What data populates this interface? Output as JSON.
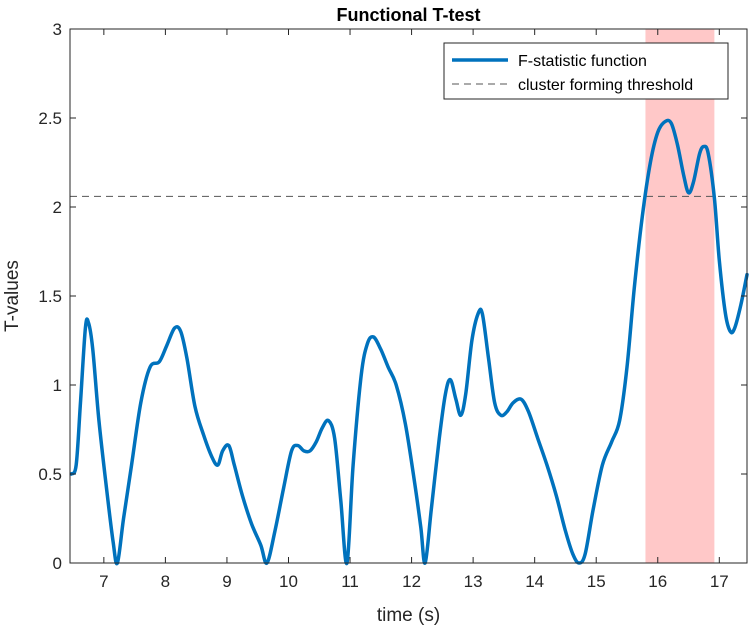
{
  "chart_data": {
    "type": "line",
    "title": "Functional T-test",
    "xlabel": "time (s)",
    "ylabel": "T-values",
    "xlim": [
      6.45,
      17.45
    ],
    "ylim": [
      0,
      3
    ],
    "xticks": [
      7,
      8,
      9,
      10,
      11,
      12,
      13,
      14,
      15,
      16,
      17
    ],
    "yticks": [
      0,
      0.5,
      1,
      1.5,
      2,
      2.5,
      3
    ],
    "ytick_labels": [
      "0",
      "0.5",
      "1",
      "1.5",
      "2",
      "2.5",
      "3"
    ],
    "grid": false,
    "legend_position": "top-right",
    "threshold": {
      "name": "cluster forming threshold",
      "value": 2.06,
      "color": "#555555",
      "style": "dashed"
    },
    "significant_region": {
      "x_start": 15.8,
      "x_end": 16.92,
      "color": "#ffc8c8"
    },
    "series": [
      {
        "name": "F-statistic function",
        "color": "#0072bd",
        "points": [
          [
            6.47,
            0.5
          ],
          [
            6.55,
            0.55
          ],
          [
            6.62,
            0.9
          ],
          [
            6.7,
            1.32
          ],
          [
            6.75,
            1.35
          ],
          [
            6.82,
            1.2
          ],
          [
            6.92,
            0.8
          ],
          [
            7.05,
            0.4
          ],
          [
            7.15,
            0.12
          ],
          [
            7.22,
            0.0
          ],
          [
            7.32,
            0.25
          ],
          [
            7.45,
            0.55
          ],
          [
            7.6,
            0.9
          ],
          [
            7.75,
            1.1
          ],
          [
            7.9,
            1.13
          ],
          [
            8.02,
            1.22
          ],
          [
            8.15,
            1.32
          ],
          [
            8.25,
            1.3
          ],
          [
            8.35,
            1.15
          ],
          [
            8.48,
            0.88
          ],
          [
            8.62,
            0.72
          ],
          [
            8.75,
            0.6
          ],
          [
            8.85,
            0.55
          ],
          [
            8.93,
            0.63
          ],
          [
            9.03,
            0.66
          ],
          [
            9.12,
            0.55
          ],
          [
            9.25,
            0.38
          ],
          [
            9.4,
            0.22
          ],
          [
            9.55,
            0.1
          ],
          [
            9.65,
            0.0
          ],
          [
            9.78,
            0.18
          ],
          [
            9.92,
            0.42
          ],
          [
            10.05,
            0.63
          ],
          [
            10.15,
            0.66
          ],
          [
            10.25,
            0.63
          ],
          [
            10.35,
            0.63
          ],
          [
            10.45,
            0.68
          ],
          [
            10.55,
            0.76
          ],
          [
            10.65,
            0.8
          ],
          [
            10.75,
            0.7
          ],
          [
            10.85,
            0.35
          ],
          [
            10.95,
            0.0
          ],
          [
            11.05,
            0.55
          ],
          [
            11.18,
            1.05
          ],
          [
            11.28,
            1.23
          ],
          [
            11.38,
            1.27
          ],
          [
            11.5,
            1.2
          ],
          [
            11.62,
            1.1
          ],
          [
            11.75,
            1.0
          ],
          [
            11.9,
            0.78
          ],
          [
            12.05,
            0.45
          ],
          [
            12.15,
            0.2
          ],
          [
            12.22,
            0.0
          ],
          [
            12.32,
            0.3
          ],
          [
            12.45,
            0.7
          ],
          [
            12.55,
            0.95
          ],
          [
            12.63,
            1.03
          ],
          [
            12.72,
            0.92
          ],
          [
            12.8,
            0.83
          ],
          [
            12.88,
            0.95
          ],
          [
            12.98,
            1.25
          ],
          [
            13.08,
            1.4
          ],
          [
            13.15,
            1.4
          ],
          [
            13.25,
            1.15
          ],
          [
            13.35,
            0.9
          ],
          [
            13.45,
            0.83
          ],
          [
            13.55,
            0.85
          ],
          [
            13.65,
            0.9
          ],
          [
            13.78,
            0.92
          ],
          [
            13.9,
            0.85
          ],
          [
            14.05,
            0.7
          ],
          [
            14.2,
            0.55
          ],
          [
            14.35,
            0.38
          ],
          [
            14.5,
            0.18
          ],
          [
            14.62,
            0.05
          ],
          [
            14.72,
            0.0
          ],
          [
            14.82,
            0.05
          ],
          [
            14.95,
            0.3
          ],
          [
            15.1,
            0.55
          ],
          [
            15.25,
            0.68
          ],
          [
            15.38,
            0.8
          ],
          [
            15.5,
            1.1
          ],
          [
            15.62,
            1.55
          ],
          [
            15.75,
            1.95
          ],
          [
            15.88,
            2.25
          ],
          [
            16.0,
            2.42
          ],
          [
            16.12,
            2.48
          ],
          [
            16.22,
            2.47
          ],
          [
            16.32,
            2.35
          ],
          [
            16.42,
            2.18
          ],
          [
            16.5,
            2.08
          ],
          [
            16.58,
            2.14
          ],
          [
            16.68,
            2.3
          ],
          [
            16.75,
            2.34
          ],
          [
            16.82,
            2.3
          ],
          [
            16.92,
            2.05
          ],
          [
            17.0,
            1.7
          ],
          [
            17.1,
            1.4
          ],
          [
            17.18,
            1.3
          ],
          [
            17.25,
            1.32
          ],
          [
            17.35,
            1.45
          ],
          [
            17.45,
            1.62
          ]
        ]
      }
    ]
  }
}
